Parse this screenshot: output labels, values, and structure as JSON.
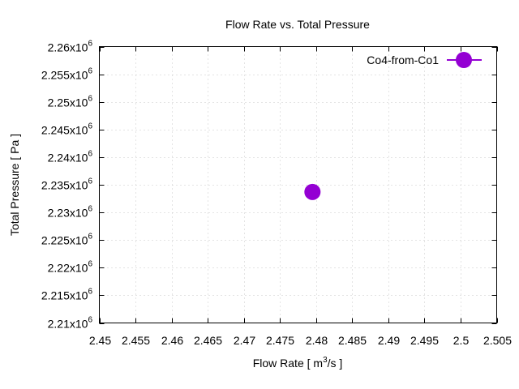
{
  "chart_data": {
    "type": "scatter",
    "title": "Flow Rate vs. Total Pressure",
    "xlabel": "Flow Rate [ m3/s ]",
    "xlabel_parts": {
      "pre": "Flow Rate [ m",
      "sup": "3",
      "post": "/s ]"
    },
    "ylabel": "Total Pressure [ Pa ]",
    "xlim": [
      2.45,
      2.505
    ],
    "ylim": [
      2210000,
      2260000
    ],
    "x_ticks": [
      2.45,
      2.455,
      2.46,
      2.465,
      2.47,
      2.475,
      2.48,
      2.485,
      2.49,
      2.495,
      2.5,
      2.505
    ],
    "x_tick_labels": [
      "2.45",
      "2.455",
      "2.46",
      "2.465",
      "2.47",
      "2.475",
      "2.48",
      "2.485",
      "2.49",
      "2.495",
      "2.5",
      "2.505"
    ],
    "y_ticks": [
      2210000,
      2215000,
      2220000,
      2225000,
      2230000,
      2235000,
      2240000,
      2245000,
      2250000,
      2255000,
      2260000
    ],
    "y_tick_mantissas": [
      "2.21",
      "2.215",
      "2.22",
      "2.225",
      "2.23",
      "2.235",
      "2.24",
      "2.245",
      "2.25",
      "2.255",
      "2.26"
    ],
    "y_tick_exp_base": "x10",
    "y_tick_exp": "6",
    "grid": true,
    "legend_position": "top-right",
    "series": [
      {
        "name": "Co4-from-Co1",
        "color": "#9400d3",
        "x": [
          2.4795
        ],
        "y": [
          2233700
        ]
      }
    ]
  }
}
